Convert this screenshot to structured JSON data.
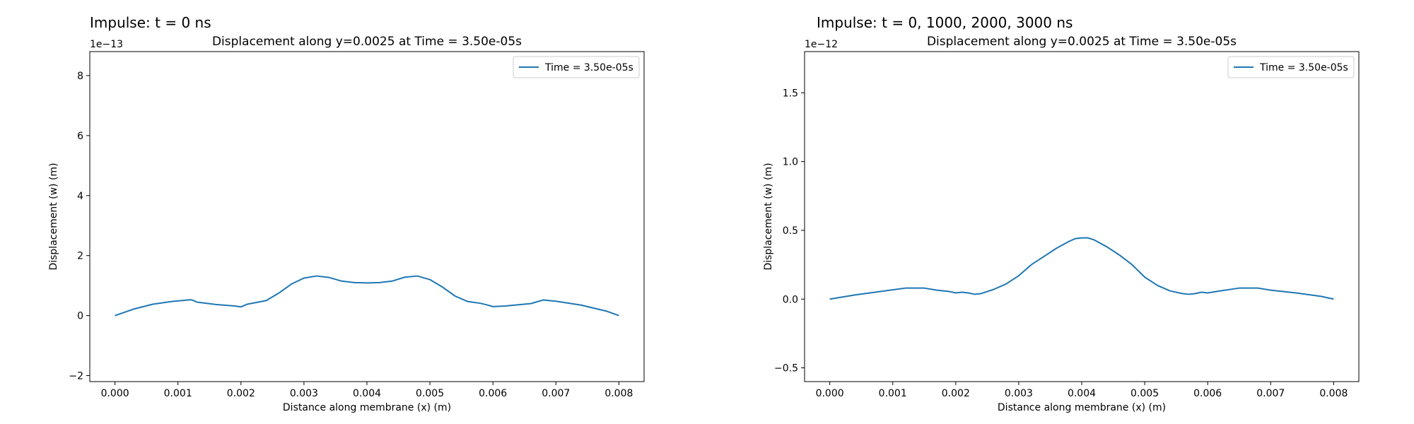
{
  "panels": [
    {
      "heading": "Impulse: t = 0 ns"
    },
    {
      "heading": "Impulse: t = 0, 1000, 2000, 3000 ns"
    }
  ],
  "chart_data": [
    {
      "type": "line",
      "title": "Displacement along y=0.0025 at Time = 3.50e-05s",
      "xlabel": "Distance along membrane (x) (m)",
      "ylabel": "Displacement (w) (m)",
      "offset_text": "1e−13",
      "xlim": [
        -0.0004,
        0.0084
      ],
      "ylim": [
        -2.2,
        8.8
      ],
      "xticks": [
        0.0,
        0.001,
        0.002,
        0.003,
        0.004,
        0.005,
        0.006,
        0.007,
        0.008
      ],
      "xtick_labels": [
        "0.000",
        "0.001",
        "0.002",
        "0.003",
        "0.004",
        "0.005",
        "0.006",
        "0.007",
        "0.008"
      ],
      "yticks": [
        -2,
        0,
        2,
        4,
        6,
        8
      ],
      "ytick_labels": [
        "−2",
        "0",
        "2",
        "4",
        "6",
        "8"
      ],
      "grid": false,
      "legend_position": "top-right",
      "color": "#1f77b4",
      "series": [
        {
          "name": "Time = 3.50e-05s",
          "x": [
            0.0,
            0.0003,
            0.0006,
            0.0009,
            0.0012,
            0.00125,
            0.0013,
            0.0016,
            0.0019,
            0.002,
            0.0021,
            0.0024,
            0.0026,
            0.0028,
            0.003,
            0.0032,
            0.0034,
            0.0036,
            0.0038,
            0.004,
            0.0042,
            0.0044,
            0.0046,
            0.0048,
            0.005,
            0.0052,
            0.0054,
            0.0056,
            0.0058,
            0.0059,
            0.006,
            0.0062,
            0.0066,
            0.0068,
            0.007,
            0.0074,
            0.0078,
            0.008
          ],
          "y": [
            0.0,
            0.22,
            0.38,
            0.47,
            0.53,
            0.5,
            0.45,
            0.37,
            0.32,
            0.29,
            0.38,
            0.5,
            0.75,
            1.05,
            1.25,
            1.32,
            1.27,
            1.15,
            1.1,
            1.09,
            1.1,
            1.15,
            1.28,
            1.32,
            1.2,
            0.95,
            0.65,
            0.47,
            0.41,
            0.36,
            0.3,
            0.32,
            0.4,
            0.52,
            0.48,
            0.35,
            0.15,
            0.0
          ]
        }
      ]
    },
    {
      "type": "line",
      "title": "Displacement along y=0.0025 at Time = 3.50e-05s",
      "xlabel": "Distance along membrane (x) (m)",
      "ylabel": "Displacement (w) (m)",
      "offset_text": "1e−12",
      "xlim": [
        -0.0004,
        0.0084
      ],
      "ylim": [
        -0.6,
        1.8
      ],
      "xticks": [
        0.0,
        0.001,
        0.002,
        0.003,
        0.004,
        0.005,
        0.006,
        0.007,
        0.008
      ],
      "xtick_labels": [
        "0.000",
        "0.001",
        "0.002",
        "0.003",
        "0.004",
        "0.005",
        "0.006",
        "0.007",
        "0.008"
      ],
      "yticks": [
        -0.5,
        0.0,
        0.5,
        1.0,
        1.5
      ],
      "ytick_labels": [
        "−0.5",
        "0.0",
        "0.5",
        "1.0",
        "1.5"
      ],
      "grid": false,
      "legend_position": "top-right",
      "color": "#1f77b4",
      "series": [
        {
          "name": "Time = 3.50e-05s",
          "x": [
            0.0,
            0.0004,
            0.0008,
            0.0012,
            0.0015,
            0.0017,
            0.0019,
            0.002,
            0.0021,
            0.0022,
            0.0023,
            0.0024,
            0.0026,
            0.0028,
            0.003,
            0.0032,
            0.0034,
            0.0036,
            0.0038,
            0.0039,
            0.004,
            0.0041,
            0.0042,
            0.0044,
            0.0046,
            0.0048,
            0.005,
            0.0052,
            0.0054,
            0.0056,
            0.0057,
            0.0058,
            0.0059,
            0.006,
            0.0062,
            0.0065,
            0.0068,
            0.007,
            0.0074,
            0.0078,
            0.008
          ],
          "y": [
            0.0,
            0.03,
            0.055,
            0.08,
            0.08,
            0.065,
            0.055,
            0.045,
            0.05,
            0.045,
            0.035,
            0.04,
            0.07,
            0.11,
            0.17,
            0.25,
            0.31,
            0.37,
            0.42,
            0.44,
            0.445,
            0.445,
            0.43,
            0.38,
            0.32,
            0.25,
            0.16,
            0.1,
            0.06,
            0.04,
            0.035,
            0.04,
            0.05,
            0.045,
            0.06,
            0.08,
            0.08,
            0.065,
            0.045,
            0.02,
            0.0
          ]
        }
      ]
    }
  ]
}
